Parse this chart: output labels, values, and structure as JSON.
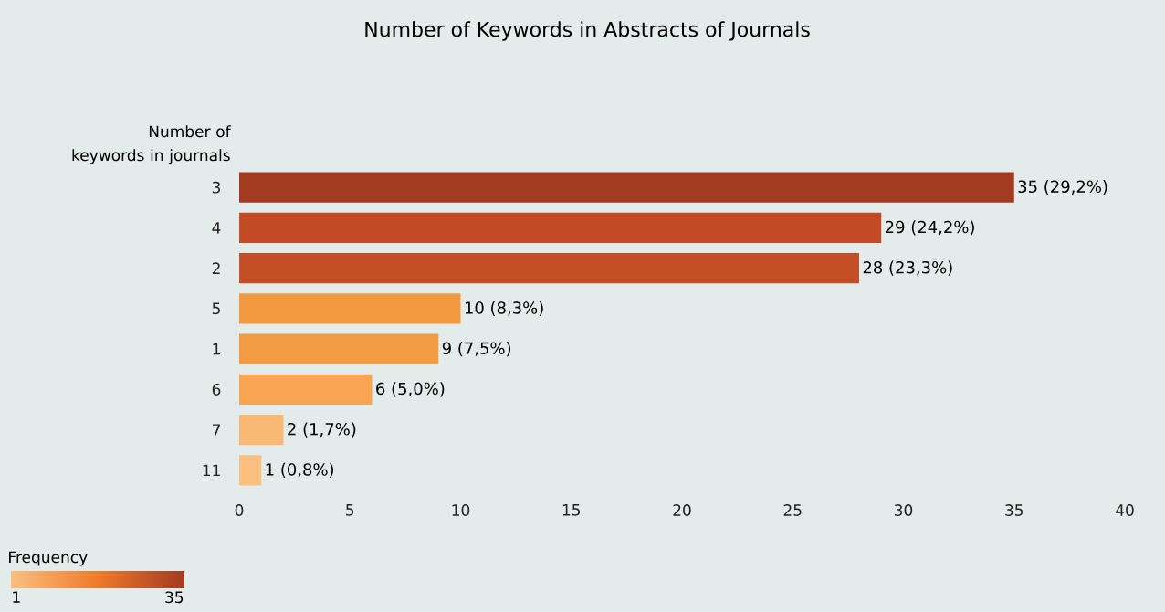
{
  "chart_data": {
    "type": "bar",
    "orientation": "horizontal",
    "title": "Number of Keywords in Abstracts of Journals",
    "ylabel": "Number of keywords in journals",
    "categories": [
      "3",
      "4",
      "2",
      "5",
      "1",
      "6",
      "7",
      "11"
    ],
    "values": [
      35,
      29,
      28,
      10,
      9,
      6,
      2,
      1
    ],
    "value_labels": [
      "35 (29,2%)",
      "29 (24,2%)",
      "28 (23,3%)",
      "10 (8,3%)",
      "9 (7,5%)",
      "6 (5,0%)",
      "2 (1,7%)",
      "1 (0,8%)"
    ],
    "colors": [
      "#a33a22",
      "#c24b25",
      "#c44f26",
      "#f39a40",
      "#f39b42",
      "#f7a553",
      "#f9b874",
      "#fbbf80"
    ],
    "xlim": [
      0,
      40
    ],
    "xticks": [
      0,
      5,
      10,
      15,
      20,
      25,
      30,
      35,
      40
    ],
    "clabel": "Frequency",
    "clim": [
      1,
      35
    ],
    "cticks": [
      1,
      35
    ],
    "grid": false
  }
}
